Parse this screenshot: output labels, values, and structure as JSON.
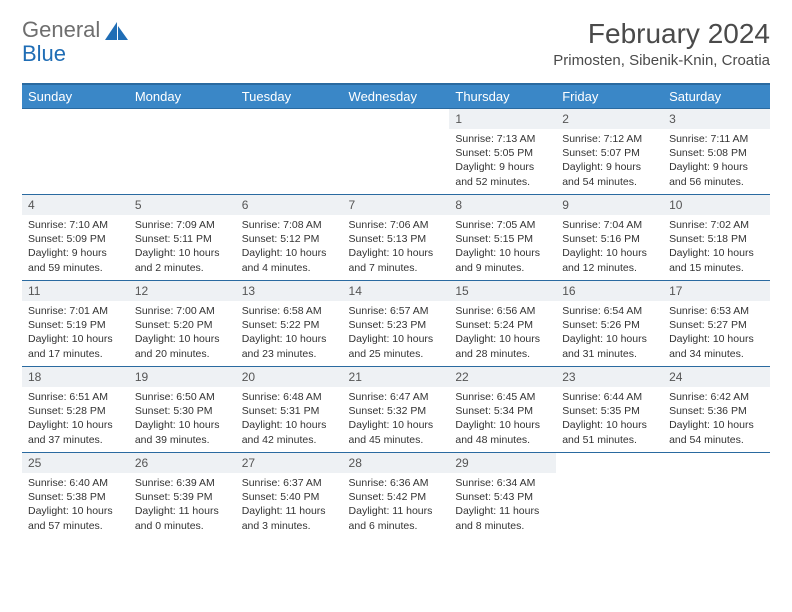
{
  "brand": {
    "word1": "General",
    "word2": "Blue",
    "colors": {
      "gray": "#6e6e6e",
      "blue": "#1f6db5"
    }
  },
  "title": "February 2024",
  "location": "Primosten, Sibenik-Knin, Croatia",
  "header_bg": "#3a87c7",
  "header_border": "#2a6aa0",
  "daynum_bg": "#eef1f4",
  "weekdays": [
    "Sunday",
    "Monday",
    "Tuesday",
    "Wednesday",
    "Thursday",
    "Friday",
    "Saturday"
  ],
  "weeks": [
    [
      {
        "empty": true
      },
      {
        "empty": true
      },
      {
        "empty": true
      },
      {
        "empty": true
      },
      {
        "day": "1",
        "sunrise": "Sunrise: 7:13 AM",
        "sunset": "Sunset: 5:05 PM",
        "daylight1": "Daylight: 9 hours",
        "daylight2": "and 52 minutes."
      },
      {
        "day": "2",
        "sunrise": "Sunrise: 7:12 AM",
        "sunset": "Sunset: 5:07 PM",
        "daylight1": "Daylight: 9 hours",
        "daylight2": "and 54 minutes."
      },
      {
        "day": "3",
        "sunrise": "Sunrise: 7:11 AM",
        "sunset": "Sunset: 5:08 PM",
        "daylight1": "Daylight: 9 hours",
        "daylight2": "and 56 minutes."
      }
    ],
    [
      {
        "day": "4",
        "sunrise": "Sunrise: 7:10 AM",
        "sunset": "Sunset: 5:09 PM",
        "daylight1": "Daylight: 9 hours",
        "daylight2": "and 59 minutes."
      },
      {
        "day": "5",
        "sunrise": "Sunrise: 7:09 AM",
        "sunset": "Sunset: 5:11 PM",
        "daylight1": "Daylight: 10 hours",
        "daylight2": "and 2 minutes."
      },
      {
        "day": "6",
        "sunrise": "Sunrise: 7:08 AM",
        "sunset": "Sunset: 5:12 PM",
        "daylight1": "Daylight: 10 hours",
        "daylight2": "and 4 minutes."
      },
      {
        "day": "7",
        "sunrise": "Sunrise: 7:06 AM",
        "sunset": "Sunset: 5:13 PM",
        "daylight1": "Daylight: 10 hours",
        "daylight2": "and 7 minutes."
      },
      {
        "day": "8",
        "sunrise": "Sunrise: 7:05 AM",
        "sunset": "Sunset: 5:15 PM",
        "daylight1": "Daylight: 10 hours",
        "daylight2": "and 9 minutes."
      },
      {
        "day": "9",
        "sunrise": "Sunrise: 7:04 AM",
        "sunset": "Sunset: 5:16 PM",
        "daylight1": "Daylight: 10 hours",
        "daylight2": "and 12 minutes."
      },
      {
        "day": "10",
        "sunrise": "Sunrise: 7:02 AM",
        "sunset": "Sunset: 5:18 PM",
        "daylight1": "Daylight: 10 hours",
        "daylight2": "and 15 minutes."
      }
    ],
    [
      {
        "day": "11",
        "sunrise": "Sunrise: 7:01 AM",
        "sunset": "Sunset: 5:19 PM",
        "daylight1": "Daylight: 10 hours",
        "daylight2": "and 17 minutes."
      },
      {
        "day": "12",
        "sunrise": "Sunrise: 7:00 AM",
        "sunset": "Sunset: 5:20 PM",
        "daylight1": "Daylight: 10 hours",
        "daylight2": "and 20 minutes."
      },
      {
        "day": "13",
        "sunrise": "Sunrise: 6:58 AM",
        "sunset": "Sunset: 5:22 PM",
        "daylight1": "Daylight: 10 hours",
        "daylight2": "and 23 minutes."
      },
      {
        "day": "14",
        "sunrise": "Sunrise: 6:57 AM",
        "sunset": "Sunset: 5:23 PM",
        "daylight1": "Daylight: 10 hours",
        "daylight2": "and 25 minutes."
      },
      {
        "day": "15",
        "sunrise": "Sunrise: 6:56 AM",
        "sunset": "Sunset: 5:24 PM",
        "daylight1": "Daylight: 10 hours",
        "daylight2": "and 28 minutes."
      },
      {
        "day": "16",
        "sunrise": "Sunrise: 6:54 AM",
        "sunset": "Sunset: 5:26 PM",
        "daylight1": "Daylight: 10 hours",
        "daylight2": "and 31 minutes."
      },
      {
        "day": "17",
        "sunrise": "Sunrise: 6:53 AM",
        "sunset": "Sunset: 5:27 PM",
        "daylight1": "Daylight: 10 hours",
        "daylight2": "and 34 minutes."
      }
    ],
    [
      {
        "day": "18",
        "sunrise": "Sunrise: 6:51 AM",
        "sunset": "Sunset: 5:28 PM",
        "daylight1": "Daylight: 10 hours",
        "daylight2": "and 37 minutes."
      },
      {
        "day": "19",
        "sunrise": "Sunrise: 6:50 AM",
        "sunset": "Sunset: 5:30 PM",
        "daylight1": "Daylight: 10 hours",
        "daylight2": "and 39 minutes."
      },
      {
        "day": "20",
        "sunrise": "Sunrise: 6:48 AM",
        "sunset": "Sunset: 5:31 PM",
        "daylight1": "Daylight: 10 hours",
        "daylight2": "and 42 minutes."
      },
      {
        "day": "21",
        "sunrise": "Sunrise: 6:47 AM",
        "sunset": "Sunset: 5:32 PM",
        "daylight1": "Daylight: 10 hours",
        "daylight2": "and 45 minutes."
      },
      {
        "day": "22",
        "sunrise": "Sunrise: 6:45 AM",
        "sunset": "Sunset: 5:34 PM",
        "daylight1": "Daylight: 10 hours",
        "daylight2": "and 48 minutes."
      },
      {
        "day": "23",
        "sunrise": "Sunrise: 6:44 AM",
        "sunset": "Sunset: 5:35 PM",
        "daylight1": "Daylight: 10 hours",
        "daylight2": "and 51 minutes."
      },
      {
        "day": "24",
        "sunrise": "Sunrise: 6:42 AM",
        "sunset": "Sunset: 5:36 PM",
        "daylight1": "Daylight: 10 hours",
        "daylight2": "and 54 minutes."
      }
    ],
    [
      {
        "day": "25",
        "sunrise": "Sunrise: 6:40 AM",
        "sunset": "Sunset: 5:38 PM",
        "daylight1": "Daylight: 10 hours",
        "daylight2": "and 57 minutes."
      },
      {
        "day": "26",
        "sunrise": "Sunrise: 6:39 AM",
        "sunset": "Sunset: 5:39 PM",
        "daylight1": "Daylight: 11 hours",
        "daylight2": "and 0 minutes."
      },
      {
        "day": "27",
        "sunrise": "Sunrise: 6:37 AM",
        "sunset": "Sunset: 5:40 PM",
        "daylight1": "Daylight: 11 hours",
        "daylight2": "and 3 minutes."
      },
      {
        "day": "28",
        "sunrise": "Sunrise: 6:36 AM",
        "sunset": "Sunset: 5:42 PM",
        "daylight1": "Daylight: 11 hours",
        "daylight2": "and 6 minutes."
      },
      {
        "day": "29",
        "sunrise": "Sunrise: 6:34 AM",
        "sunset": "Sunset: 5:43 PM",
        "daylight1": "Daylight: 11 hours",
        "daylight2": "and 8 minutes."
      },
      {
        "empty": true
      },
      {
        "empty": true
      }
    ]
  ]
}
